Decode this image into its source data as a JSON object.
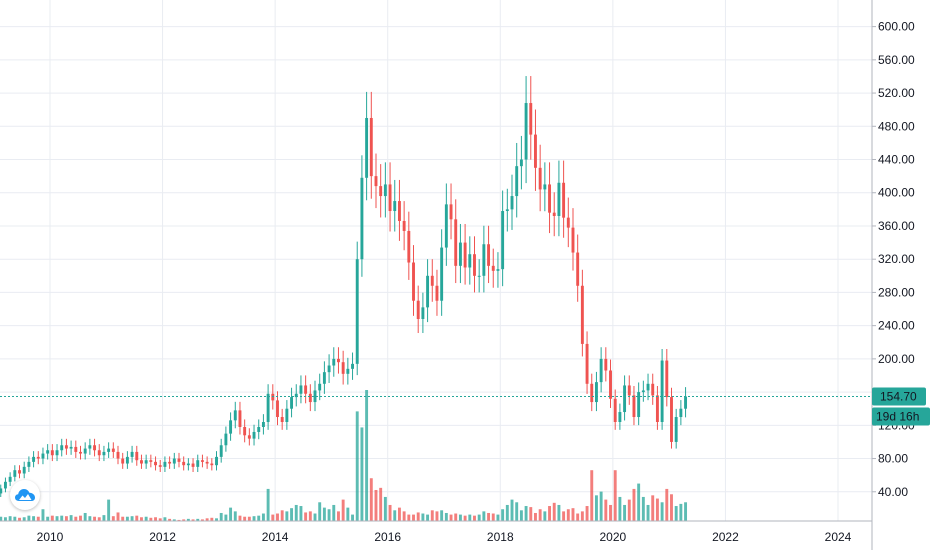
{
  "chart_data": {
    "type": "candlestick",
    "interval": "monthly",
    "y_axis_side": "right",
    "grid": true,
    "y_ticks": [
      "40.00",
      "80.00",
      "120.00",
      "160.00",
      "200.00",
      "240.00",
      "280.00",
      "320.00",
      "360.00",
      "400.00",
      "440.00",
      "480.00",
      "520.00",
      "560.00",
      "600.00"
    ],
    "x_ticks": [
      "2010",
      "2012",
      "2014",
      "2016",
      "2018",
      "2020",
      "2022",
      "2024"
    ],
    "y_range": [
      0,
      620
    ],
    "x_range": [
      2009.0,
      2025.1
    ],
    "last_price": 154.7,
    "last_price_label": "154.70",
    "countdown_label": "19d 16h",
    "colors": {
      "up": "#26a69a",
      "down": "#ef5350",
      "grid": "#e9ecf2",
      "axis_text": "#131722",
      "price_line": "#26a69a"
    },
    "candle_series": {
      "start": "2009-01",
      "closes": [
        38,
        44,
        52,
        58,
        66,
        62,
        70,
        76,
        82,
        80,
        86,
        90,
        84,
        90,
        96,
        92,
        94,
        88,
        86,
        92,
        96,
        90,
        84,
        88,
        92,
        88,
        80,
        74,
        82,
        88,
        78,
        74,
        78,
        76,
        72,
        70,
        76,
        74,
        80,
        76,
        72,
        74,
        70,
        78,
        76,
        74,
        72,
        82,
        96,
        110,
        126,
        138,
        118,
        108,
        104,
        112,
        118,
        124,
        158,
        150,
        130,
        124,
        140,
        154,
        158,
        168,
        158,
        148,
        162,
        170,
        184,
        192,
        200,
        196,
        182,
        188,
        194,
        320,
        418,
        490,
        420,
        408,
        396,
        410,
        378,
        390,
        366,
        354,
        316,
        270,
        248,
        262,
        300,
        288,
        270,
        334,
        386,
        368,
        312,
        340,
        310,
        326,
        300,
        300,
        338,
        312,
        306,
        308,
        378,
        380,
        396,
        432,
        440,
        508,
        470,
        430,
        404,
        410,
        376,
        372,
        412,
        370,
        358,
        328,
        288,
        218,
        170,
        148,
        172,
        200,
        186,
        152,
        124,
        136,
        168,
        156,
        130,
        160,
        162,
        170,
        156,
        124,
        198,
        154,
        100,
        130,
        140,
        154.7
      ],
      "volumes": [
        6,
        8,
        7,
        9,
        8,
        6,
        7,
        10,
        9,
        8,
        22,
        8,
        10,
        9,
        10,
        9,
        11,
        8,
        10,
        15,
        9,
        8,
        7,
        11,
        40,
        9,
        16,
        8,
        8,
        9,
        10,
        7,
        8,
        6,
        7,
        5,
        7,
        4,
        3,
        2,
        3,
        4,
        3,
        4,
        3,
        5,
        6,
        5,
        15,
        12,
        25,
        18,
        10,
        8,
        8,
        9,
        10,
        14,
        60,
        12,
        14,
        20,
        18,
        24,
        30,
        28,
        16,
        18,
        14,
        35,
        25,
        22,
        30,
        18,
        40,
        25,
        12,
        205,
        175,
        245,
        80,
        58,
        62,
        45,
        30,
        20,
        25,
        18,
        12,
        12,
        16,
        14,
        12,
        20,
        18,
        20,
        15,
        12,
        14,
        12,
        10,
        12,
        10,
        12,
        18,
        15,
        14,
        12,
        22,
        30,
        40,
        35,
        20,
        28,
        26,
        15,
        22,
        18,
        28,
        34,
        30,
        18,
        22,
        24,
        14,
        18,
        28,
        95,
        48,
        55,
        40,
        30,
        95,
        45,
        30,
        40,
        60,
        70,
        45,
        30,
        48,
        42,
        35,
        60,
        50,
        28,
        32,
        35
      ]
    }
  },
  "logo": {
    "icon": "cloud-logo-icon",
    "color": "#2196f3"
  }
}
